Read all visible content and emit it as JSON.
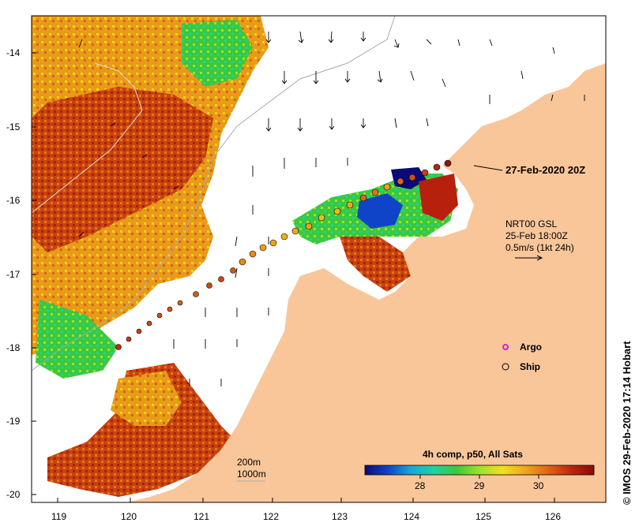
{
  "map": {
    "lon_ticks": [
      "119",
      "120",
      "121",
      "122",
      "123",
      "124",
      "125",
      "126"
    ],
    "lat_ticks": [
      "-14",
      "-15",
      "-16",
      "-17",
      "-18",
      "-19",
      "-20"
    ],
    "track_label": "27-Feb-2020 20Z",
    "current_ref": {
      "line1": "NRT00 GSL",
      "line2": "25-Feb 18:00Z",
      "line3": "0.5m/s (1kt 24h)"
    },
    "legend": {
      "argo_label": "Argo",
      "ship_label": "Ship",
      "argo_color": "#d61fe0"
    },
    "depth_contours": {
      "c200": "200m",
      "c1000": "1000m"
    },
    "colorbar": {
      "title": "4h comp, p50, All Sats",
      "ticks": [
        "28",
        "29",
        "30"
      ],
      "colors": [
        "#0a0a78",
        "#1044c8",
        "#19a6d8",
        "#1ed2a0",
        "#3cc83c",
        "#9ee22a",
        "#f2e21a",
        "#f0a818",
        "#e06414",
        "#c0260e",
        "#8c0a0a"
      ]
    },
    "credit": "© IMOS 29-Feb-2020 17:14 Hobart",
    "land_color": "#f9c69a",
    "ocean_color": "#ffffff"
  }
}
